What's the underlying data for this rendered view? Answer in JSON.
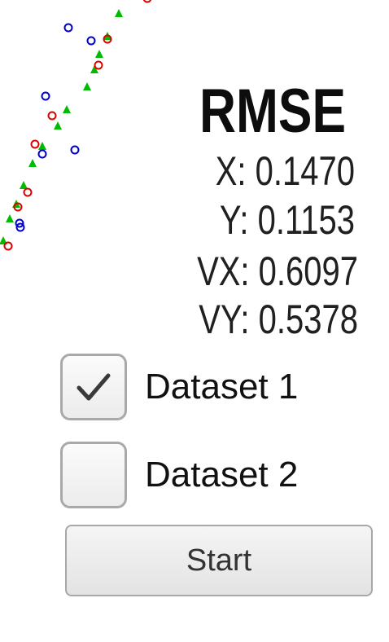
{
  "rmse": {
    "title": "RMSE",
    "x": "X: 0.1470",
    "y": "Y: 0.1153",
    "vx": "VX: 0.6097",
    "vy": "VY: 0.5378"
  },
  "datasets": [
    {
      "label": "Dataset 1",
      "checked": true
    },
    {
      "label": "Dataset 2",
      "checked": false
    }
  ],
  "start_button": {
    "label": "Start"
  },
  "plot": {
    "series": [
      {
        "marker": "circle",
        "color": "#0000cc"
      },
      {
        "marker": "circle",
        "color": "#dd0000"
      },
      {
        "marker": "triangle",
        "color": "#00bb00"
      }
    ]
  }
}
